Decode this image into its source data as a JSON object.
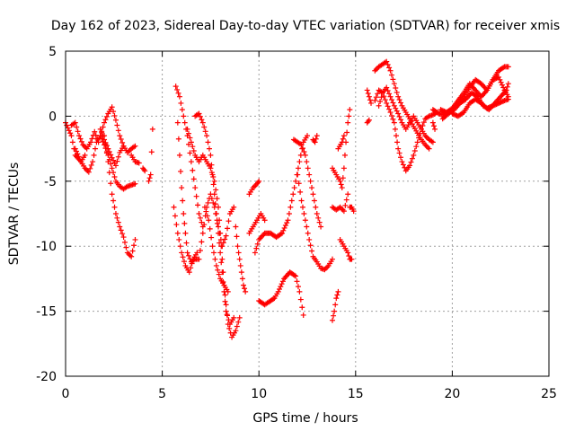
{
  "chart_data": {
    "type": "scatter",
    "title": "Day 162 of 2023, Sidereal Day-to-day VTEC variation (SDTVAR) for receiver xmis",
    "xlabel": "GPS time / hours",
    "ylabel": "SDTVAR / TECUs",
    "xlim": [
      0,
      25
    ],
    "ylim": [
      -20,
      5
    ],
    "xticks": [
      "0",
      "5",
      "10",
      "15",
      "20",
      "25"
    ],
    "yticks": [
      "5",
      "0",
      "-5",
      "-10",
      "-15",
      "-20"
    ],
    "grid": true,
    "marker": "plus",
    "color": "#ff0000",
    "tracks": [
      [
        [
          0.0,
          -0.5
        ],
        [
          0.3,
          -1.5
        ],
        [
          0.5,
          -3.0
        ],
        [
          0.8,
          -3.5
        ],
        [
          1.0,
          -3.0
        ]
      ],
      [
        [
          0.5,
          -2.5
        ],
        [
          0.8,
          -3.5
        ],
        [
          1.0,
          -4.0
        ],
        [
          1.2,
          -4.3
        ],
        [
          1.4,
          -3.5
        ],
        [
          1.6,
          -2.0
        ],
        [
          1.8,
          -1.5
        ],
        [
          2.0,
          -0.5
        ],
        [
          2.2,
          0.2
        ],
        [
          2.4,
          0.7
        ],
        [
          2.6,
          -0.3
        ],
        [
          2.8,
          -1.5
        ],
        [
          3.0,
          -2.3
        ],
        [
          3.2,
          -2.8
        ],
        [
          3.4,
          -2.5
        ],
        [
          3.6,
          -2.3
        ]
      ],
      [
        [
          0.3,
          -0.7
        ],
        [
          0.5,
          -0.5
        ],
        [
          0.7,
          -1.5
        ],
        [
          0.9,
          -2.2
        ],
        [
          1.1,
          -2.5
        ],
        [
          1.3,
          -2.0
        ],
        [
          1.5,
          -1.2
        ],
        [
          1.7,
          -2.0
        ]
      ],
      [
        [
          1.8,
          -1.5
        ],
        [
          2.0,
          -2.2
        ],
        [
          2.2,
          -3.0
        ],
        [
          2.4,
          -4.0
        ],
        [
          2.6,
          -5.0
        ],
        [
          2.8,
          -5.4
        ],
        [
          3.0,
          -5.6
        ],
        [
          3.2,
          -5.4
        ],
        [
          3.4,
          -5.3
        ],
        [
          3.6,
          -5.2
        ]
      ],
      [
        [
          2.0,
          -1.5
        ],
        [
          2.2,
          -3.5
        ],
        [
          2.4,
          -6.0
        ],
        [
          2.6,
          -7.5
        ],
        [
          2.8,
          -8.5
        ],
        [
          3.0,
          -9.3
        ],
        [
          3.2,
          -10.5
        ],
        [
          3.4,
          -10.8
        ],
        [
          3.6,
          -9.5
        ]
      ],
      [
        [
          1.8,
          -1.0
        ],
        [
          2.0,
          -1.8
        ],
        [
          2.2,
          -2.5
        ],
        [
          2.4,
          -3.2
        ],
        [
          2.6,
          -3.8
        ],
        [
          2.8,
          -2.8
        ],
        [
          3.0,
          -2.3
        ]
      ],
      [
        [
          3.4,
          -3.0
        ],
        [
          3.6,
          -3.5
        ],
        [
          3.8,
          -3.6
        ]
      ],
      [
        [
          4.0,
          -4.0
        ],
        [
          4.1,
          -4.2
        ]
      ],
      [
        [
          4.3,
          -5.0
        ],
        [
          4.4,
          -4.5
        ],
        [
          4.5,
          -1.0
        ]
      ],
      [
        [
          5.7,
          2.3
        ],
        [
          5.9,
          1.5
        ],
        [
          6.1,
          0.0
        ],
        [
          6.3,
          -1.5
        ],
        [
          6.5,
          -3.5
        ],
        [
          6.7,
          -5.5
        ],
        [
          6.9,
          -7.5
        ],
        [
          7.1,
          -8.5
        ]
      ],
      [
        [
          5.8,
          -0.5
        ],
        [
          5.9,
          -3.0
        ],
        [
          6.0,
          -5.5
        ],
        [
          6.1,
          -7.5
        ],
        [
          6.2,
          -9.0
        ],
        [
          6.3,
          -10.5
        ],
        [
          6.5,
          -11.2
        ],
        [
          6.7,
          -11.0
        ],
        [
          6.9,
          -11.0
        ],
        [
          7.1,
          -9.0
        ],
        [
          7.3,
          -7.0
        ],
        [
          7.5,
          -6.0
        ],
        [
          7.7,
          -7.0
        ],
        [
          7.9,
          -8.5
        ],
        [
          8.1,
          -10.0
        ],
        [
          8.3,
          -9.2
        ],
        [
          8.5,
          -7.5
        ],
        [
          8.7,
          -7.0
        ]
      ],
      [
        [
          5.6,
          -7.0
        ],
        [
          5.8,
          -9.0
        ],
        [
          6.0,
          -10.5
        ],
        [
          6.2,
          -11.5
        ],
        [
          6.4,
          -12.0
        ],
        [
          6.6,
          -11.0
        ],
        [
          6.8,
          -10.5
        ]
      ],
      [
        [
          6.3,
          -1.0
        ],
        [
          6.5,
          -2.0
        ],
        [
          6.7,
          -3.0
        ],
        [
          6.9,
          -3.5
        ],
        [
          7.1,
          -3.0
        ],
        [
          7.3,
          -3.5
        ],
        [
          7.5,
          -4.0
        ],
        [
          7.7,
          -5.0
        ],
        [
          7.9,
          -7.0
        ],
        [
          8.0,
          -9.0
        ],
        [
          8.1,
          -11.0
        ],
        [
          8.2,
          -13.0
        ],
        [
          8.3,
          -14.5
        ],
        [
          8.4,
          -16.0
        ],
        [
          8.6,
          -17.0
        ],
        [
          8.8,
          -16.5
        ],
        [
          9.0,
          -15.5
        ]
      ],
      [
        [
          6.7,
          0.0
        ],
        [
          6.9,
          0.2
        ],
        [
          7.1,
          -0.5
        ],
        [
          7.3,
          -1.5
        ],
        [
          7.5,
          -3.0
        ],
        [
          7.6,
          -4.5
        ],
        [
          7.7,
          -6.0
        ],
        [
          7.8,
          -7.5
        ],
        [
          7.9,
          -9.0
        ],
        [
          8.0,
          -10.5
        ],
        [
          8.1,
          -12.0
        ],
        [
          8.2,
          -13.5
        ],
        [
          8.3,
          -15.0
        ],
        [
          8.5,
          -16.0
        ],
        [
          8.7,
          -15.5
        ]
      ],
      [
        [
          7.2,
          -7.0
        ],
        [
          7.4,
          -8.0
        ],
        [
          7.6,
          -10.0
        ],
        [
          7.8,
          -11.5
        ],
        [
          8.0,
          -12.5
        ],
        [
          8.2,
          -13.0
        ],
        [
          8.4,
          -13.5
        ]
      ],
      [
        [
          8.8,
          -8.5
        ],
        [
          8.9,
          -10.0
        ],
        [
          9.0,
          -11.0
        ],
        [
          9.1,
          -12.0
        ],
        [
          9.2,
          -13.0
        ],
        [
          9.3,
          -13.5
        ]
      ],
      [
        [
          9.5,
          -6.0
        ],
        [
          9.7,
          -5.5
        ],
        [
          9.9,
          -5.2
        ],
        [
          10.0,
          -5.0
        ]
      ],
      [
        [
          9.5,
          -9.0
        ],
        [
          9.7,
          -8.5
        ],
        [
          9.9,
          -8.0
        ],
        [
          10.1,
          -7.5
        ],
        [
          10.3,
          -8.0
        ]
      ],
      [
        [
          10.0,
          -14.2
        ],
        [
          10.3,
          -14.5
        ],
        [
          10.5,
          -14.3
        ],
        [
          10.8,
          -14.0
        ],
        [
          11.0,
          -13.5
        ],
        [
          11.3,
          -12.5
        ],
        [
          11.6,
          -12.0
        ],
        [
          11.9,
          -12.3
        ],
        [
          12.1,
          -13.5
        ],
        [
          12.3,
          -15.3
        ]
      ],
      [
        [
          9.8,
          -10.5
        ],
        [
          10.0,
          -9.5
        ],
        [
          10.3,
          -9.0
        ],
        [
          10.6,
          -9.0
        ],
        [
          10.9,
          -9.3
        ],
        [
          11.2,
          -9.0
        ],
        [
          11.5,
          -8.0
        ],
        [
          11.7,
          -6.5
        ],
        [
          11.9,
          -5.0
        ],
        [
          12.1,
          -3.5
        ],
        [
          12.3,
          -2.0
        ],
        [
          12.5,
          -1.5
        ]
      ],
      [
        [
          11.8,
          -1.8
        ],
        [
          12.0,
          -2.0
        ],
        [
          12.2,
          -2.2
        ],
        [
          12.4,
          -3.0
        ],
        [
          12.6,
          -4.5
        ],
        [
          12.8,
          -6.0
        ],
        [
          13.0,
          -7.5
        ],
        [
          13.2,
          -8.5
        ]
      ],
      [
        [
          12.0,
          -4.5
        ],
        [
          12.2,
          -6.5
        ],
        [
          12.4,
          -8.0
        ],
        [
          12.6,
          -9.5
        ],
        [
          12.8,
          -10.8
        ],
        [
          13.0,
          -11.2
        ],
        [
          13.2,
          -11.7
        ],
        [
          13.4,
          -11.8
        ],
        [
          13.6,
          -11.5
        ],
        [
          13.8,
          -11.0
        ]
      ],
      [
        [
          12.8,
          -1.8
        ],
        [
          12.9,
          -2.0
        ],
        [
          13.0,
          -1.5
        ]
      ],
      [
        [
          13.8,
          -7.0
        ],
        [
          14.0,
          -7.2
        ],
        [
          14.2,
          -7.0
        ],
        [
          14.4,
          -7.3
        ],
        [
          14.6,
          -6.0
        ]
      ],
      [
        [
          13.8,
          -4.0
        ],
        [
          14.0,
          -4.5
        ],
        [
          14.2,
          -5.0
        ],
        [
          14.3,
          -5.5
        ],
        [
          14.4,
          -4.0
        ],
        [
          14.5,
          -2.0
        ],
        [
          14.6,
          -0.5
        ],
        [
          14.7,
          0.5
        ]
      ],
      [
        [
          14.1,
          -2.5
        ],
        [
          14.3,
          -2.0
        ],
        [
          14.4,
          -1.5
        ]
      ],
      [
        [
          14.2,
          -9.5
        ],
        [
          14.4,
          -10.0
        ],
        [
          14.6,
          -10.5
        ],
        [
          14.7,
          -11.0
        ],
        [
          14.8,
          -11.0
        ]
      ],
      [
        [
          13.8,
          -15.7
        ],
        [
          13.9,
          -15.0
        ],
        [
          14.0,
          -14.0
        ],
        [
          14.1,
          -13.5
        ]
      ],
      [
        [
          14.7,
          -7.0
        ],
        [
          14.8,
          -7.0
        ],
        [
          14.9,
          -7.3
        ]
      ],
      [
        [
          15.6,
          2.0
        ],
        [
          15.7,
          1.5
        ],
        [
          15.8,
          1.0
        ]
      ],
      [
        [
          15.6,
          -0.5
        ],
        [
          15.7,
          -0.3
        ]
      ],
      [
        [
          16.2,
          0.8
        ],
        [
          16.4,
          1.8
        ],
        [
          16.6,
          2.2
        ],
        [
          16.8,
          1.5
        ],
        [
          17.0,
          0.8
        ],
        [
          17.2,
          0.2
        ],
        [
          17.4,
          -0.5
        ],
        [
          17.6,
          -1.0
        ],
        [
          17.8,
          -0.5
        ],
        [
          18.0,
          0.0
        ],
        [
          18.2,
          -0.5
        ],
        [
          18.4,
          -1.0
        ],
        [
          18.6,
          -1.5
        ],
        [
          18.8,
          -1.8
        ],
        [
          19.0,
          -2.0
        ]
      ],
      [
        [
          16.0,
          3.5
        ],
        [
          16.2,
          3.8
        ],
        [
          16.4,
          4.0
        ],
        [
          16.6,
          4.2
        ],
        [
          16.8,
          3.5
        ],
        [
          17.0,
          2.5
        ],
        [
          17.2,
          1.5
        ],
        [
          17.4,
          0.8
        ],
        [
          17.6,
          0.3
        ],
        [
          17.8,
          -0.2
        ],
        [
          18.0,
          -0.8
        ],
        [
          18.2,
          -1.3
        ],
        [
          18.4,
          -1.8
        ],
        [
          18.6,
          -2.2
        ],
        [
          18.8,
          -2.5
        ]
      ],
      [
        [
          16.0,
          1.2
        ],
        [
          16.2,
          2.0
        ],
        [
          16.4,
          1.8
        ],
        [
          16.6,
          1.0
        ],
        [
          16.8,
          0.3
        ],
        [
          17.0,
          -0.5
        ],
        [
          17.1,
          -1.5
        ],
        [
          17.2,
          -2.5
        ],
        [
          17.4,
          -3.5
        ],
        [
          17.6,
          -4.2
        ],
        [
          17.8,
          -3.8
        ],
        [
          18.0,
          -3.0
        ],
        [
          18.2,
          -2.0
        ],
        [
          18.4,
          -1.0
        ],
        [
          18.6,
          -0.2
        ],
        [
          18.8,
          0.0
        ],
        [
          19.0,
          0.1
        ],
        [
          19.2,
          0.3
        ]
      ],
      [
        [
          19.0,
          0.5
        ],
        [
          19.3,
          0.2
        ],
        [
          19.6,
          0.1
        ],
        [
          20.0,
          0.5
        ],
        [
          20.3,
          1.0
        ],
        [
          20.6,
          1.5
        ],
        [
          20.9,
          2.2
        ],
        [
          21.2,
          2.8
        ],
        [
          21.5,
          2.5
        ],
        [
          21.8,
          2.0
        ],
        [
          22.1,
          2.8
        ],
        [
          22.4,
          3.5
        ],
        [
          22.7,
          3.8
        ],
        [
          22.9,
          3.8
        ]
      ],
      [
        [
          19.4,
          0.5
        ],
        [
          19.7,
          0.3
        ],
        [
          20.0,
          0.6
        ],
        [
          20.3,
          1.2
        ],
        [
          20.6,
          1.8
        ],
        [
          20.9,
          2.5
        ],
        [
          21.2,
          2.0
        ],
        [
          21.5,
          1.5
        ],
        [
          21.8,
          2.0
        ],
        [
          22.1,
          2.8
        ],
        [
          22.4,
          3.0
        ],
        [
          22.7,
          2.0
        ],
        [
          22.9,
          1.5
        ]
      ],
      [
        [
          19.5,
          -0.2
        ],
        [
          19.8,
          0.2
        ],
        [
          20.1,
          0.5
        ],
        [
          20.4,
          1.0
        ],
        [
          20.7,
          1.3
        ],
        [
          21.0,
          1.8
        ],
        [
          21.3,
          1.5
        ],
        [
          21.6,
          0.8
        ],
        [
          21.9,
          0.5
        ],
        [
          22.2,
          1.0
        ],
        [
          22.5,
          1.5
        ],
        [
          22.8,
          2.0
        ],
        [
          22.9,
          2.5
        ]
      ],
      [
        [
          20.0,
          0.2
        ],
        [
          20.3,
          0.0
        ],
        [
          20.6,
          0.3
        ],
        [
          20.9,
          1.0
        ],
        [
          21.2,
          1.3
        ],
        [
          21.5,
          1.0
        ],
        [
          21.8,
          0.6
        ],
        [
          22.1,
          0.8
        ],
        [
          22.4,
          1.0
        ],
        [
          22.7,
          1.2
        ],
        [
          22.9,
          1.3
        ]
      ],
      [
        [
          19.0,
          -0.5
        ],
        [
          19.1,
          -1.0
        ]
      ]
    ]
  }
}
